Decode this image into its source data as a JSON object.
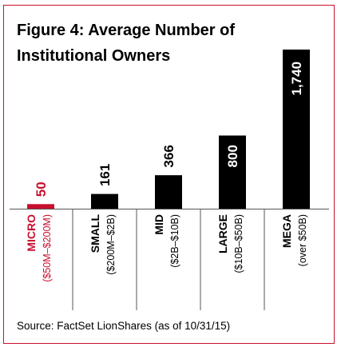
{
  "chart_data": {
    "type": "bar",
    "title": "Figure 4: Average Number of Institutional Owners",
    "categories": [
      "MICRO",
      "SMALL",
      "MID",
      "LARGE",
      "MEGA"
    ],
    "category_ranges": [
      "($50M–$200M)",
      "($200M–$2B)",
      "($2B–$10B)",
      "($10B–$50B)",
      "(over $50B)"
    ],
    "values": [
      50,
      161,
      366,
      800,
      1740
    ],
    "value_labels": [
      "50",
      "161",
      "366",
      "800",
      "1,740"
    ],
    "bar_colors": [
      "#c8102e",
      "#000000",
      "#000000",
      "#000000",
      "#000000"
    ],
    "label_colors": [
      "#c8102e",
      "#000000",
      "#000000",
      "#000000",
      "#000000"
    ],
    "ylim": [
      0,
      1740
    ],
    "grid": false,
    "legend": "none",
    "source": "Source: FactSet LionShares (as of 10/31/15)"
  },
  "colors": {
    "frame": "#c8102e",
    "accent": "#c8102e",
    "bar": "#000000",
    "divider": "#555555",
    "text": "#000000"
  }
}
